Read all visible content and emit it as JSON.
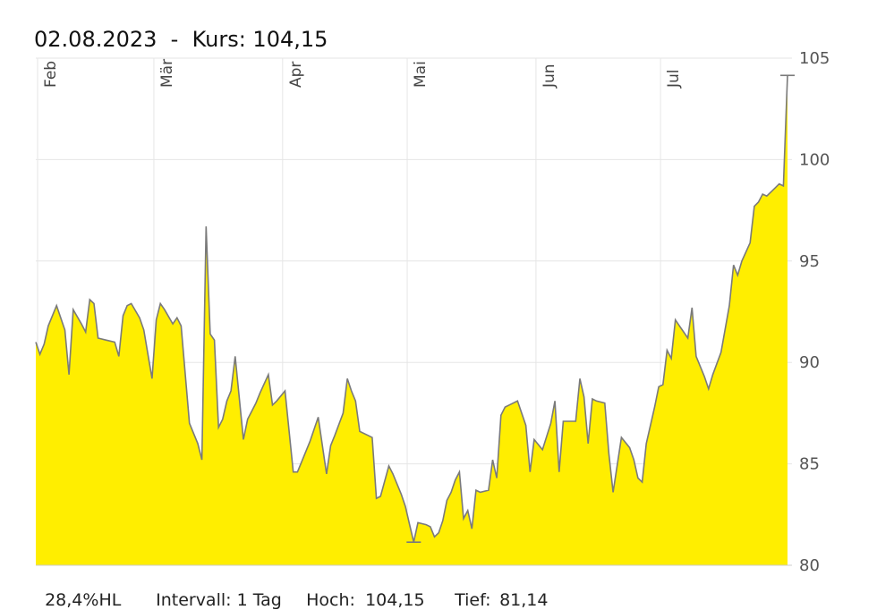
{
  "header": {
    "title": "02.08.2023  -  Kurs: 104,15"
  },
  "footer": {
    "change": "28,4%HL",
    "interval": "Intervall: 1 Tag",
    "high_label": "Hoch:",
    "high_value": "104,15",
    "low_label": "Tief:",
    "low_value": "81,14"
  },
  "chart_data": {
    "type": "area",
    "x_ticks": [
      {
        "label": "Feb",
        "day": 0
      },
      {
        "label": "Mär",
        "day": 28
      },
      {
        "label": "Apr",
        "day": 59
      },
      {
        "label": "Mai",
        "day": 89
      },
      {
        "label": "Jun",
        "day": 120
      },
      {
        "label": "Jul",
        "day": 150
      }
    ],
    "y_ticks": [
      "80",
      "85",
      "90",
      "95",
      "100",
      "105"
    ],
    "ylim": [
      80,
      105
    ],
    "fill_color": "#ffee00",
    "line_color": "#7a7a7a",
    "grid": true,
    "y_axis_side": "right",
    "points": [
      [
        0,
        91.0
      ],
      [
        1,
        90.4
      ],
      [
        2,
        90.9
      ],
      [
        3,
        91.8
      ],
      [
        5,
        92.8
      ],
      [
        7,
        91.6
      ],
      [
        8,
        89.4
      ],
      [
        9,
        92.6
      ],
      [
        11,
        91.9
      ],
      [
        12,
        91.5
      ],
      [
        13,
        93.1
      ],
      [
        14,
        92.9
      ],
      [
        15,
        91.2
      ],
      [
        17,
        91.1
      ],
      [
        19,
        91.0
      ],
      [
        20,
        90.3
      ],
      [
        21,
        92.3
      ],
      [
        22,
        92.8
      ],
      [
        23,
        92.9
      ],
      [
        25,
        92.2
      ],
      [
        26,
        91.6
      ],
      [
        28,
        89.2
      ],
      [
        29,
        92.1
      ],
      [
        30,
        92.9
      ],
      [
        31,
        92.6
      ],
      [
        33,
        91.9
      ],
      [
        34,
        92.2
      ],
      [
        35,
        91.8
      ],
      [
        37,
        87.0
      ],
      [
        39,
        86.0
      ],
      [
        40,
        85.2
      ],
      [
        41,
        96.7
      ],
      [
        42,
        91.4
      ],
      [
        43,
        91.1
      ],
      [
        44,
        86.8
      ],
      [
        45,
        87.2
      ],
      [
        46,
        88.1
      ],
      [
        47,
        88.6
      ],
      [
        48,
        90.3
      ],
      [
        50,
        86.2
      ],
      [
        51,
        87.2
      ],
      [
        53,
        88.0
      ],
      [
        54,
        88.5
      ],
      [
        56,
        89.4
      ],
      [
        57,
        87.9
      ],
      [
        58,
        88.1
      ],
      [
        60,
        88.6
      ],
      [
        61,
        86.6
      ],
      [
        62,
        84.6
      ],
      [
        63,
        84.6
      ],
      [
        66,
        86.1
      ],
      [
        68,
        87.3
      ],
      [
        70,
        84.5
      ],
      [
        71,
        85.9
      ],
      [
        72,
        86.4
      ],
      [
        74,
        87.5
      ],
      [
        75,
        89.2
      ],
      [
        76,
        88.6
      ],
      [
        77,
        88.1
      ],
      [
        78,
        86.6
      ],
      [
        80,
        86.4
      ],
      [
        81,
        86.3
      ],
      [
        82,
        83.3
      ],
      [
        83,
        83.4
      ],
      [
        85,
        84.9
      ],
      [
        86,
        84.5
      ],
      [
        88,
        83.5
      ],
      [
        89,
        82.9
      ],
      [
        90,
        82.0
      ],
      [
        91,
        81.14
      ],
      [
        92,
        82.1
      ],
      [
        94,
        82.0
      ],
      [
        95,
        81.9
      ],
      [
        96,
        81.4
      ],
      [
        97,
        81.6
      ],
      [
        98,
        82.2
      ],
      [
        99,
        83.2
      ],
      [
        100,
        83.6
      ],
      [
        101,
        84.2
      ],
      [
        102,
        84.6
      ],
      [
        103,
        82.3
      ],
      [
        104,
        82.7
      ],
      [
        105,
        81.8
      ],
      [
        106,
        83.7
      ],
      [
        107,
        83.6
      ],
      [
        109,
        83.7
      ],
      [
        110,
        85.2
      ],
      [
        111,
        84.3
      ],
      [
        112,
        87.4
      ],
      [
        113,
        87.8
      ],
      [
        114,
        87.9
      ],
      [
        116,
        88.1
      ],
      [
        118,
        86.9
      ],
      [
        119,
        84.6
      ],
      [
        120,
        86.2
      ],
      [
        122,
        85.7
      ],
      [
        124,
        87.0
      ],
      [
        125,
        88.1
      ],
      [
        126,
        84.6
      ],
      [
        127,
        87.1
      ],
      [
        128,
        87.1
      ],
      [
        130,
        87.1
      ],
      [
        131,
        89.2
      ],
      [
        132,
        88.3
      ],
      [
        133,
        86.0
      ],
      [
        134,
        88.2
      ],
      [
        135,
        88.1
      ],
      [
        137,
        88.0
      ],
      [
        138,
        85.5
      ],
      [
        139,
        83.6
      ],
      [
        141,
        86.3
      ],
      [
        143,
        85.8
      ],
      [
        144,
        85.2
      ],
      [
        145,
        84.3
      ],
      [
        146,
        84.1
      ],
      [
        147,
        86.0
      ],
      [
        149,
        87.8
      ],
      [
        150,
        88.8
      ],
      [
        151,
        88.9
      ],
      [
        152,
        90.6
      ],
      [
        153,
        90.2
      ],
      [
        154,
        92.1
      ],
      [
        155,
        91.8
      ],
      [
        157,
        91.2
      ],
      [
        158,
        92.7
      ],
      [
        159,
        90.3
      ],
      [
        161,
        89.3
      ],
      [
        162,
        88.7
      ],
      [
        163,
        89.4
      ],
      [
        165,
        90.5
      ],
      [
        167,
        92.8
      ],
      [
        168,
        94.8
      ],
      [
        169,
        94.3
      ],
      [
        170,
        95.0
      ],
      [
        172,
        95.9
      ],
      [
        173,
        97.7
      ],
      [
        174,
        97.9
      ],
      [
        175,
        98.3
      ],
      [
        176,
        98.2
      ],
      [
        178,
        98.6
      ],
      [
        179,
        98.8
      ],
      [
        180,
        98.7
      ],
      [
        181,
        104.15
      ]
    ]
  }
}
